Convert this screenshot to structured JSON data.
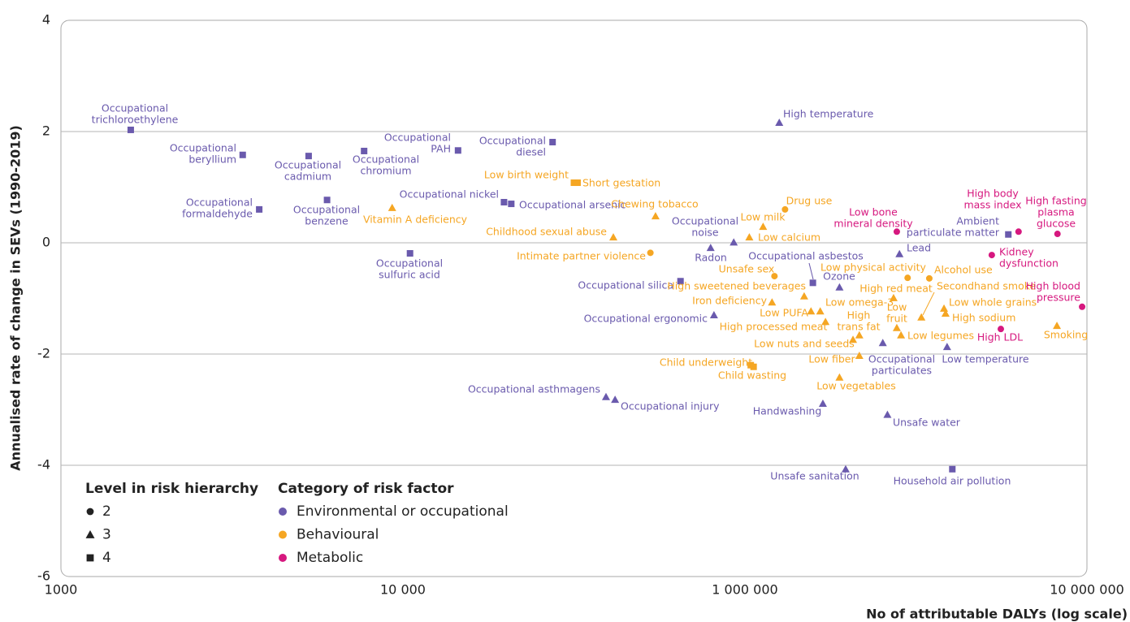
{
  "chart_data": {
    "type": "scatter",
    "x_label": "No of attributable DALYs (log scale)",
    "y_label": "Annualised rate of change in SEVs (1990-2019)",
    "log_x": true,
    "grid": true,
    "xlim": [
      1000,
      10000000
    ],
    "xticks": [
      1000,
      {
        "value": 10000,
        "label": "10 000"
      },
      {
        "value": 1000000,
        "label": "1 000 000"
      },
      {
        "value": 10000000,
        "label": "10 000 000"
      }
    ],
    "ylim": [
      -6,
      4
    ],
    "yticks": [
      4,
      2,
      0,
      -2,
      -4,
      -6
    ],
    "legend": {
      "level_title": "Level in risk hierarchy",
      "levels": [
        {
          "level": 2,
          "marker": "circle"
        },
        {
          "level": 3,
          "marker": "triangle"
        },
        {
          "level": 4,
          "marker": "square"
        }
      ],
      "category_title": "Category of risk factor"
    },
    "series": [
      {
        "name": "Environmental or occupational",
        "color": "#6a5aad",
        "labels": [
          [
            "Occupational",
            "trichloroethylene"
          ],
          [
            "Occupational",
            "beryllium"
          ],
          [
            "Occupational",
            "formaldehyde"
          ],
          [
            "Occupational",
            "cadmium"
          ],
          [
            "Occupational",
            "benzene"
          ],
          [
            "Occupational",
            "chromium"
          ],
          [
            "Occupational",
            "sulfuric acid"
          ],
          [
            "Occupational",
            "PAH"
          ],
          [
            "Occupational",
            "diesel"
          ],
          [
            "Occupational nickel"
          ],
          [
            "Occupational arsenic"
          ],
          [
            "Occupational",
            "noise"
          ],
          [
            "Radon"
          ],
          [
            "Occupational silica"
          ],
          [
            "Occupational asbestos"
          ],
          [
            "Ozone"
          ],
          [
            "Lead"
          ],
          [
            "Ambient",
            "particulate matter"
          ],
          [
            "Occupational ergonomic"
          ],
          [
            "Occupational",
            "particulates"
          ],
          [
            "Low temperature"
          ],
          [
            "Occupational asthmagens"
          ],
          [
            "Occupational injury"
          ],
          [
            "Handwashing"
          ],
          [
            "Unsafe water"
          ],
          [
            "Unsafe sanitation"
          ],
          [
            "Household air pollution"
          ],
          [
            "High temperature"
          ]
        ],
        "x": [
          1600,
          3400,
          3800,
          5300,
          6000,
          7700,
          11000,
          21000,
          75000,
          39000,
          43000,
          860000,
          630000,
          420000,
          1580000,
          1890000,
          2830000,
          5890000,
          659000,
          2530000,
          3900000,
          154000,
          174000,
          1690000,
          2610000,
          1970000,
          4040000,
          1260000
        ],
        "values": [
          2.03,
          1.58,
          0.6,
          1.56,
          0.77,
          1.65,
          -0.19,
          1.66,
          1.81,
          0.73,
          0.7,
          0.01,
          -0.09,
          -0.69,
          -0.72,
          -0.8,
          -0.2,
          0.15,
          -1.3,
          -1.8,
          -1.87,
          -2.77,
          -2.82,
          -2.89,
          -3.09,
          -4.07,
          -4.07,
          2.16
        ],
        "levels": [
          4,
          4,
          4,
          4,
          4,
          4,
          4,
          4,
          4,
          4,
          4,
          3,
          3,
          4,
          4,
          3,
          3,
          4,
          3,
          3,
          3,
          3,
          3,
          3,
          3,
          3,
          4,
          3
        ]
      },
      {
        "name": "Behavioural",
        "color": "#f5a623",
        "labels": [
          [
            "Vitamin A deficiency"
          ],
          [
            "Low birth weight"
          ],
          [
            "Short gestation"
          ],
          [
            "Chewing tobacco"
          ],
          [
            "Childhood sexual abuse"
          ],
          [
            "Intimate partner violence"
          ],
          [
            "Low milk"
          ],
          [
            "Drug use"
          ],
          [
            "Low calcium"
          ],
          [
            "High sweetened beverages"
          ],
          [
            "Unsafe sex"
          ],
          [
            "Low physical activity"
          ],
          [
            "Alcohol use"
          ],
          [
            "High red meat"
          ],
          [
            "Secondhand smoke"
          ],
          [
            "Low",
            "fruit"
          ],
          [
            "Low whole grains"
          ],
          [
            "High sodium"
          ],
          [
            "Low legumes"
          ],
          [
            "Smoking"
          ],
          [
            "Iron deficiency"
          ],
          [
            "Low omega-3"
          ],
          [
            "Low PUFA"
          ],
          [
            "High processed meat"
          ],
          [
            "High",
            "trans fat"
          ],
          [
            "Low nuts and seeds"
          ],
          [
            "Low fiber"
          ],
          [
            "Child underweight"
          ],
          [
            "Child wasting"
          ],
          [
            "Low vegetables"
          ]
        ],
        "x": [
          9300,
          100000,
          105000,
          300000,
          170000,
          280000,
          1130000,
          1310000,
          1030000,
          1490000,
          1220000,
          2990000,
          3460000,
          2720000,
          3280000,
          2780000,
          3820000,
          3860000,
          2860000,
          8170000,
          1200000,
          1660000,
          1560000,
          1720000,
          2160000,
          2070000,
          2160000,
          1040000,
          1060000,
          1890000
        ],
        "values": [
          0.63,
          1.08,
          1.08,
          0.48,
          0.1,
          -0.18,
          0.29,
          0.6,
          0.1,
          -0.96,
          -0.6,
          -0.63,
          -0.64,
          -0.99,
          -1.34,
          -1.53,
          -1.18,
          -1.27,
          -1.66,
          -1.49,
          -1.07,
          -1.23,
          -1.23,
          -1.42,
          -1.66,
          -1.74,
          -2.03,
          -2.2,
          -2.23,
          -2.42
        ],
        "levels": [
          3,
          4,
          4,
          3,
          3,
          2,
          3,
          2,
          3,
          3,
          2,
          2,
          2,
          3,
          3,
          3,
          3,
          3,
          3,
          3,
          3,
          3,
          3,
          3,
          3,
          3,
          3,
          4,
          4,
          3
        ]
      },
      {
        "name": "Metabolic",
        "color": "#d6187f",
        "labels": [
          [
            "Low bone",
            "mineral density"
          ],
          [
            "High body",
            "mass index"
          ],
          [
            "High fasting",
            "plasma",
            "glucose"
          ],
          [
            "Kidney",
            "dysfunction"
          ],
          [
            "High LDL"
          ],
          [
            "High blood",
            "pressure"
          ]
        ],
        "x": [
          2780000,
          6310000,
          8200000,
          5270000,
          5600000,
          9680000
        ],
        "values": [
          0.2,
          0.2,
          0.16,
          -0.22,
          -1.55,
          -1.15
        ],
        "levels": [
          2,
          2,
          2,
          2,
          2,
          2
        ]
      }
    ]
  }
}
